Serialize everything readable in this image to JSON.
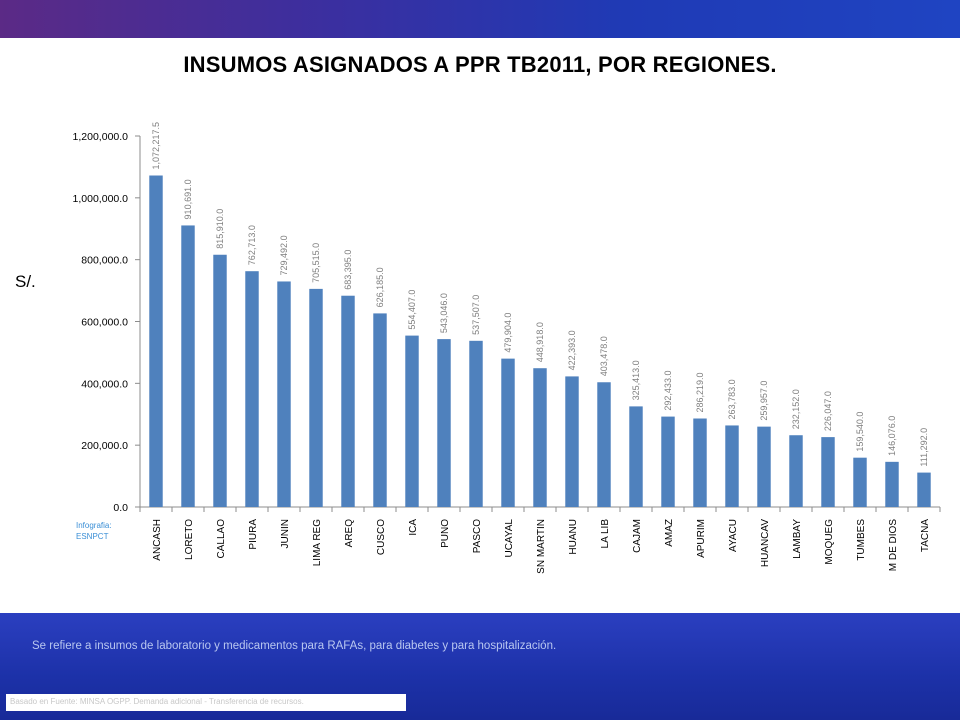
{
  "slide": {
    "title": "INSUMOS ASIGNADOS A PPR TB2011, POR REGIONES.",
    "currency_label": "S/.",
    "credit_line1": "Infografia:",
    "credit_line2": "ESNPCT",
    "note": "Se refiere a insumos de laboratorio y medicamentos para RAFAs, para diabetes y para hospitalización.",
    "source": "Basado en Fuente: MINSA OGPP. Demanda adicional - Transferencia de recursos."
  },
  "colors": {
    "bar": "#4f81bd",
    "axis": "#8c8c8c",
    "label": "#7f7f7f"
  },
  "chart_data": {
    "type": "bar",
    "title": "INSUMOS ASIGNADOS A PPR TB2011, POR REGIONES.",
    "ylabel": "S/.",
    "xlabel": "",
    "ylim": [
      0,
      1200000
    ],
    "ytick_values": [
      0,
      200000,
      400000,
      600000,
      800000,
      1000000,
      1200000
    ],
    "ytick_labels": [
      "0.0",
      "200,000.0",
      "400,000.0",
      "600,000.0",
      "800,000.0",
      "1,000,000.0",
      "1,200,000.0"
    ],
    "grid": false,
    "categories": [
      "ANCASH",
      "LORETO",
      "CALLAO",
      "PIURA",
      "JUNIN",
      "LIMA REG",
      "AREQ",
      "CUSCO",
      "ICA",
      "PUNO",
      "PASCO",
      "UCAYAL",
      "SN MARTIN",
      "HUANU",
      "LA LIB",
      "CAJAM",
      "AMAZ",
      "APURIM",
      "AYACU",
      "HUANCAV",
      "LAMBAY",
      "MOQUEG",
      "TUMBES",
      "M DE DIOS",
      "TACNA"
    ],
    "values": [
      1072217.5,
      910691.0,
      815910.0,
      762713.0,
      729492.0,
      705515.0,
      683395.0,
      626185.0,
      554407.0,
      543046.0,
      537507.0,
      479904.0,
      448918.0,
      422393.0,
      403478.0,
      325413.0,
      292433.0,
      286219.0,
      263783.0,
      259957.0,
      232152.0,
      226047.0,
      159540.0,
      146076.0,
      111292.0
    ],
    "data_labels": [
      "1,072,217.5",
      "910,691.0",
      "815,910.0",
      "762,713.0",
      "729,492.0",
      "705,515.0",
      "683,395.0",
      "626,185.0",
      "554,407.0",
      "543,046.0",
      "537,507.0",
      "479,904.0",
      "448,918.0",
      "422,393.0",
      "403,478.0",
      "325,413.0",
      "292,433.0",
      "286,219.0",
      "263,783.0",
      "259,957.0",
      "232,152.0",
      "226,047.0",
      "159,540.0",
      "146,076.0",
      "111,292.0"
    ]
  }
}
